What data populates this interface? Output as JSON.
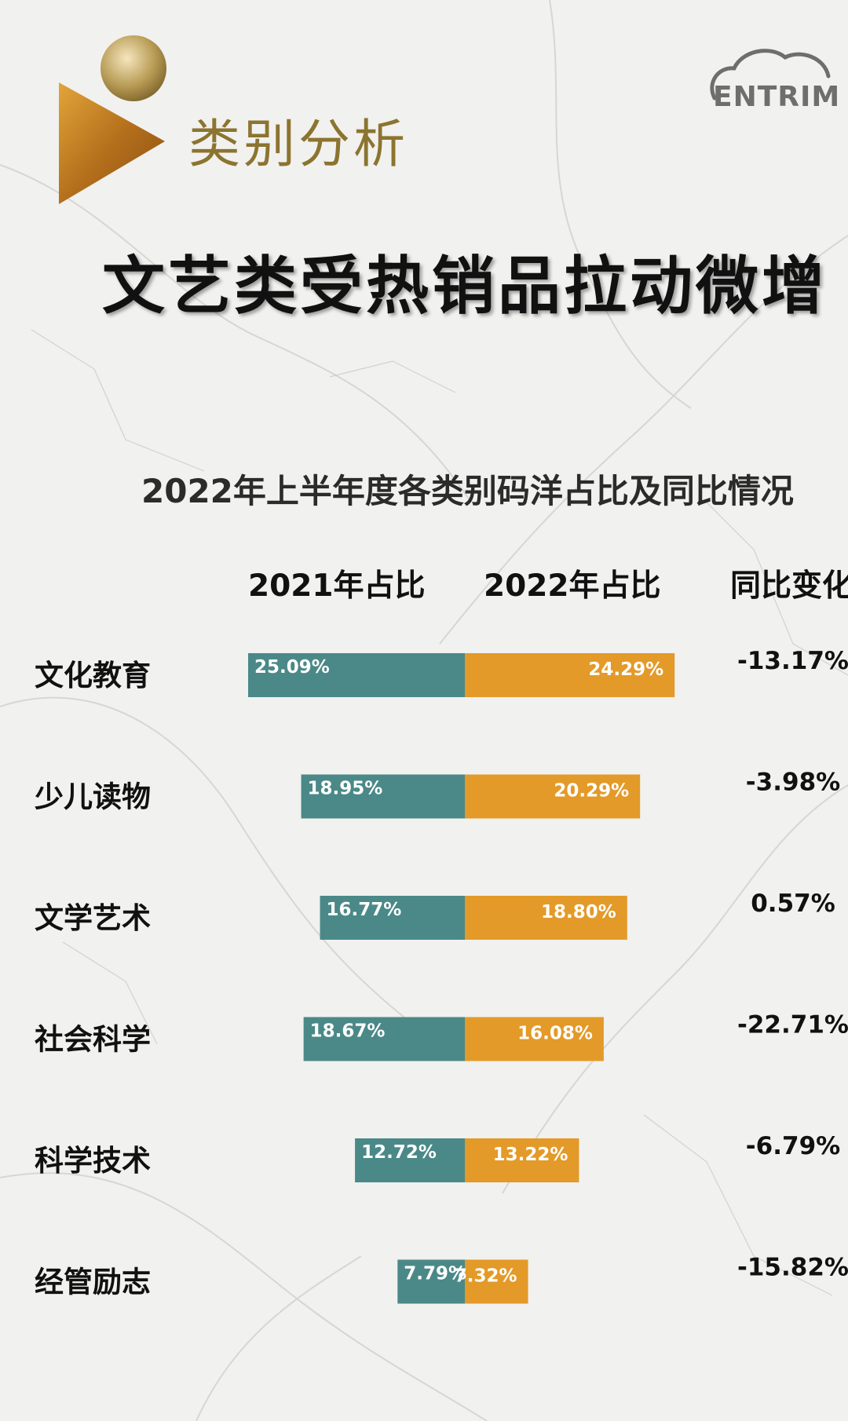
{
  "header": {
    "section_title": "类别分析",
    "logo_text": "ENTRIM",
    "headline": "文艺类受热销品拉动微增"
  },
  "chart_data": {
    "type": "bar",
    "title": "2022年上半年度各类别码洋占比及同比情况",
    "column_headers": {
      "share_2021": "2021年占比",
      "share_2022": "2022年占比",
      "yoy": "同比变化"
    },
    "categories": [
      "文化教育",
      "少儿读物",
      "文学艺术",
      "社会科学",
      "科学技术",
      "经管励志"
    ],
    "series": [
      {
        "name": "2021年占比",
        "values": [
          25.09,
          18.95,
          16.77,
          18.67,
          12.72,
          7.79
        ],
        "color": "#4a8987"
      },
      {
        "name": "2022年占比",
        "values": [
          24.29,
          20.29,
          18.8,
          16.08,
          13.22,
          7.32
        ],
        "color": "#e39a28"
      }
    ],
    "value_labels": {
      "share_2021": [
        "25.09%",
        "18.95%",
        "16.77%",
        "18.67%",
        "12.72%",
        "7.79%"
      ],
      "share_2022": [
        "24.29%",
        "20.29%",
        "18.80%",
        "16.08%",
        "13.22%",
        "7.32%"
      ]
    },
    "yoy_change": [
      "-13.17%",
      "-3.98%",
      "0.57%",
      "-22.71%",
      "-6.79%",
      "-15.82%"
    ],
    "orientation": "horizontal-diverging"
  }
}
